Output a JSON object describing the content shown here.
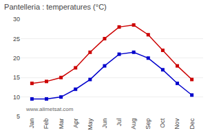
{
  "chart_data": {
    "type": "line",
    "title": "Pantelleria : temperatures (°C)",
    "categories": [
      "Jan",
      "Feb",
      "Mar",
      "Apr",
      "May",
      "Jun",
      "Jul",
      "Aug",
      "Sep",
      "Oct",
      "Nov",
      "Dec"
    ],
    "series": [
      {
        "color": "#cc0000",
        "marker": "square",
        "line_style": "solid",
        "values": [
          13.5,
          14.0,
          15.0,
          17.5,
          21.5,
          25.0,
          28.0,
          28.5,
          26.0,
          22.0,
          18.0,
          14.5
        ]
      },
      {
        "color": "#0000cc",
        "marker": "square",
        "line_style": "solid",
        "values": [
          9.5,
          9.5,
          10.0,
          12.0,
          14.5,
          18.0,
          21.0,
          21.5,
          20.0,
          17.0,
          13.5,
          10.5
        ]
      }
    ],
    "ylim": [
      5,
      30
    ],
    "yticks": [
      5,
      10,
      15,
      20,
      25,
      30
    ],
    "grid": true,
    "annotations": [
      "www.allmetsat.com"
    ]
  }
}
